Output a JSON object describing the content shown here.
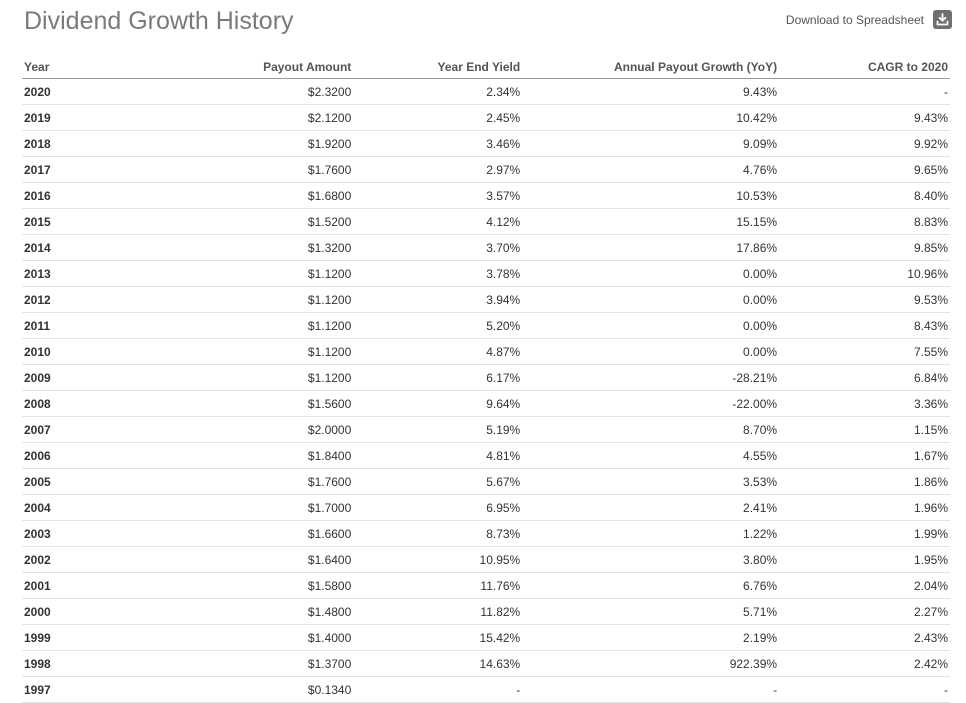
{
  "header": {
    "title": "Dividend Growth History",
    "download_label": "Download to Spreadsheet"
  },
  "icons": {
    "download": "download-icon"
  },
  "colors": {
    "title": "#7a7a7a",
    "icon_bg": "#6f6f6f",
    "header_rule": "#9a9a9a",
    "row_rule": "#e4e4e4"
  },
  "table": {
    "columns": [
      "Year",
      "Payout Amount",
      "Year End Yield",
      "Annual Payout Growth (YoY)",
      "CAGR to 2020"
    ],
    "rows": [
      [
        "2020",
        "$2.3200",
        "2.34%",
        "9.43%",
        "-"
      ],
      [
        "2019",
        "$2.1200",
        "2.45%",
        "10.42%",
        "9.43%"
      ],
      [
        "2018",
        "$1.9200",
        "3.46%",
        "9.09%",
        "9.92%"
      ],
      [
        "2017",
        "$1.7600",
        "2.97%",
        "4.76%",
        "9.65%"
      ],
      [
        "2016",
        "$1.6800",
        "3.57%",
        "10.53%",
        "8.40%"
      ],
      [
        "2015",
        "$1.5200",
        "4.12%",
        "15.15%",
        "8.83%"
      ],
      [
        "2014",
        "$1.3200",
        "3.70%",
        "17.86%",
        "9.85%"
      ],
      [
        "2013",
        "$1.1200",
        "3.78%",
        "0.00%",
        "10.96%"
      ],
      [
        "2012",
        "$1.1200",
        "3.94%",
        "0.00%",
        "9.53%"
      ],
      [
        "2011",
        "$1.1200",
        "5.20%",
        "0.00%",
        "8.43%"
      ],
      [
        "2010",
        "$1.1200",
        "4.87%",
        "0.00%",
        "7.55%"
      ],
      [
        "2009",
        "$1.1200",
        "6.17%",
        "-28.21%",
        "6.84%"
      ],
      [
        "2008",
        "$1.5600",
        "9.64%",
        "-22.00%",
        "3.36%"
      ],
      [
        "2007",
        "$2.0000",
        "5.19%",
        "8.70%",
        "1.15%"
      ],
      [
        "2006",
        "$1.8400",
        "4.81%",
        "4.55%",
        "1.67%"
      ],
      [
        "2005",
        "$1.7600",
        "5.67%",
        "3.53%",
        "1.86%"
      ],
      [
        "2004",
        "$1.7000",
        "6.95%",
        "2.41%",
        "1.96%"
      ],
      [
        "2003",
        "$1.6600",
        "8.73%",
        "1.22%",
        "1.99%"
      ],
      [
        "2002",
        "$1.6400",
        "10.95%",
        "3.80%",
        "1.95%"
      ],
      [
        "2001",
        "$1.5800",
        "11.76%",
        "6.76%",
        "2.04%"
      ],
      [
        "2000",
        "$1.4800",
        "11.82%",
        "5.71%",
        "2.27%"
      ],
      [
        "1999",
        "$1.4000",
        "15.42%",
        "2.19%",
        "2.43%"
      ],
      [
        "1998",
        "$1.3700",
        "14.63%",
        "922.39%",
        "2.42%"
      ],
      [
        "1997",
        "$0.1340",
        "-",
        "-",
        "-"
      ]
    ]
  }
}
